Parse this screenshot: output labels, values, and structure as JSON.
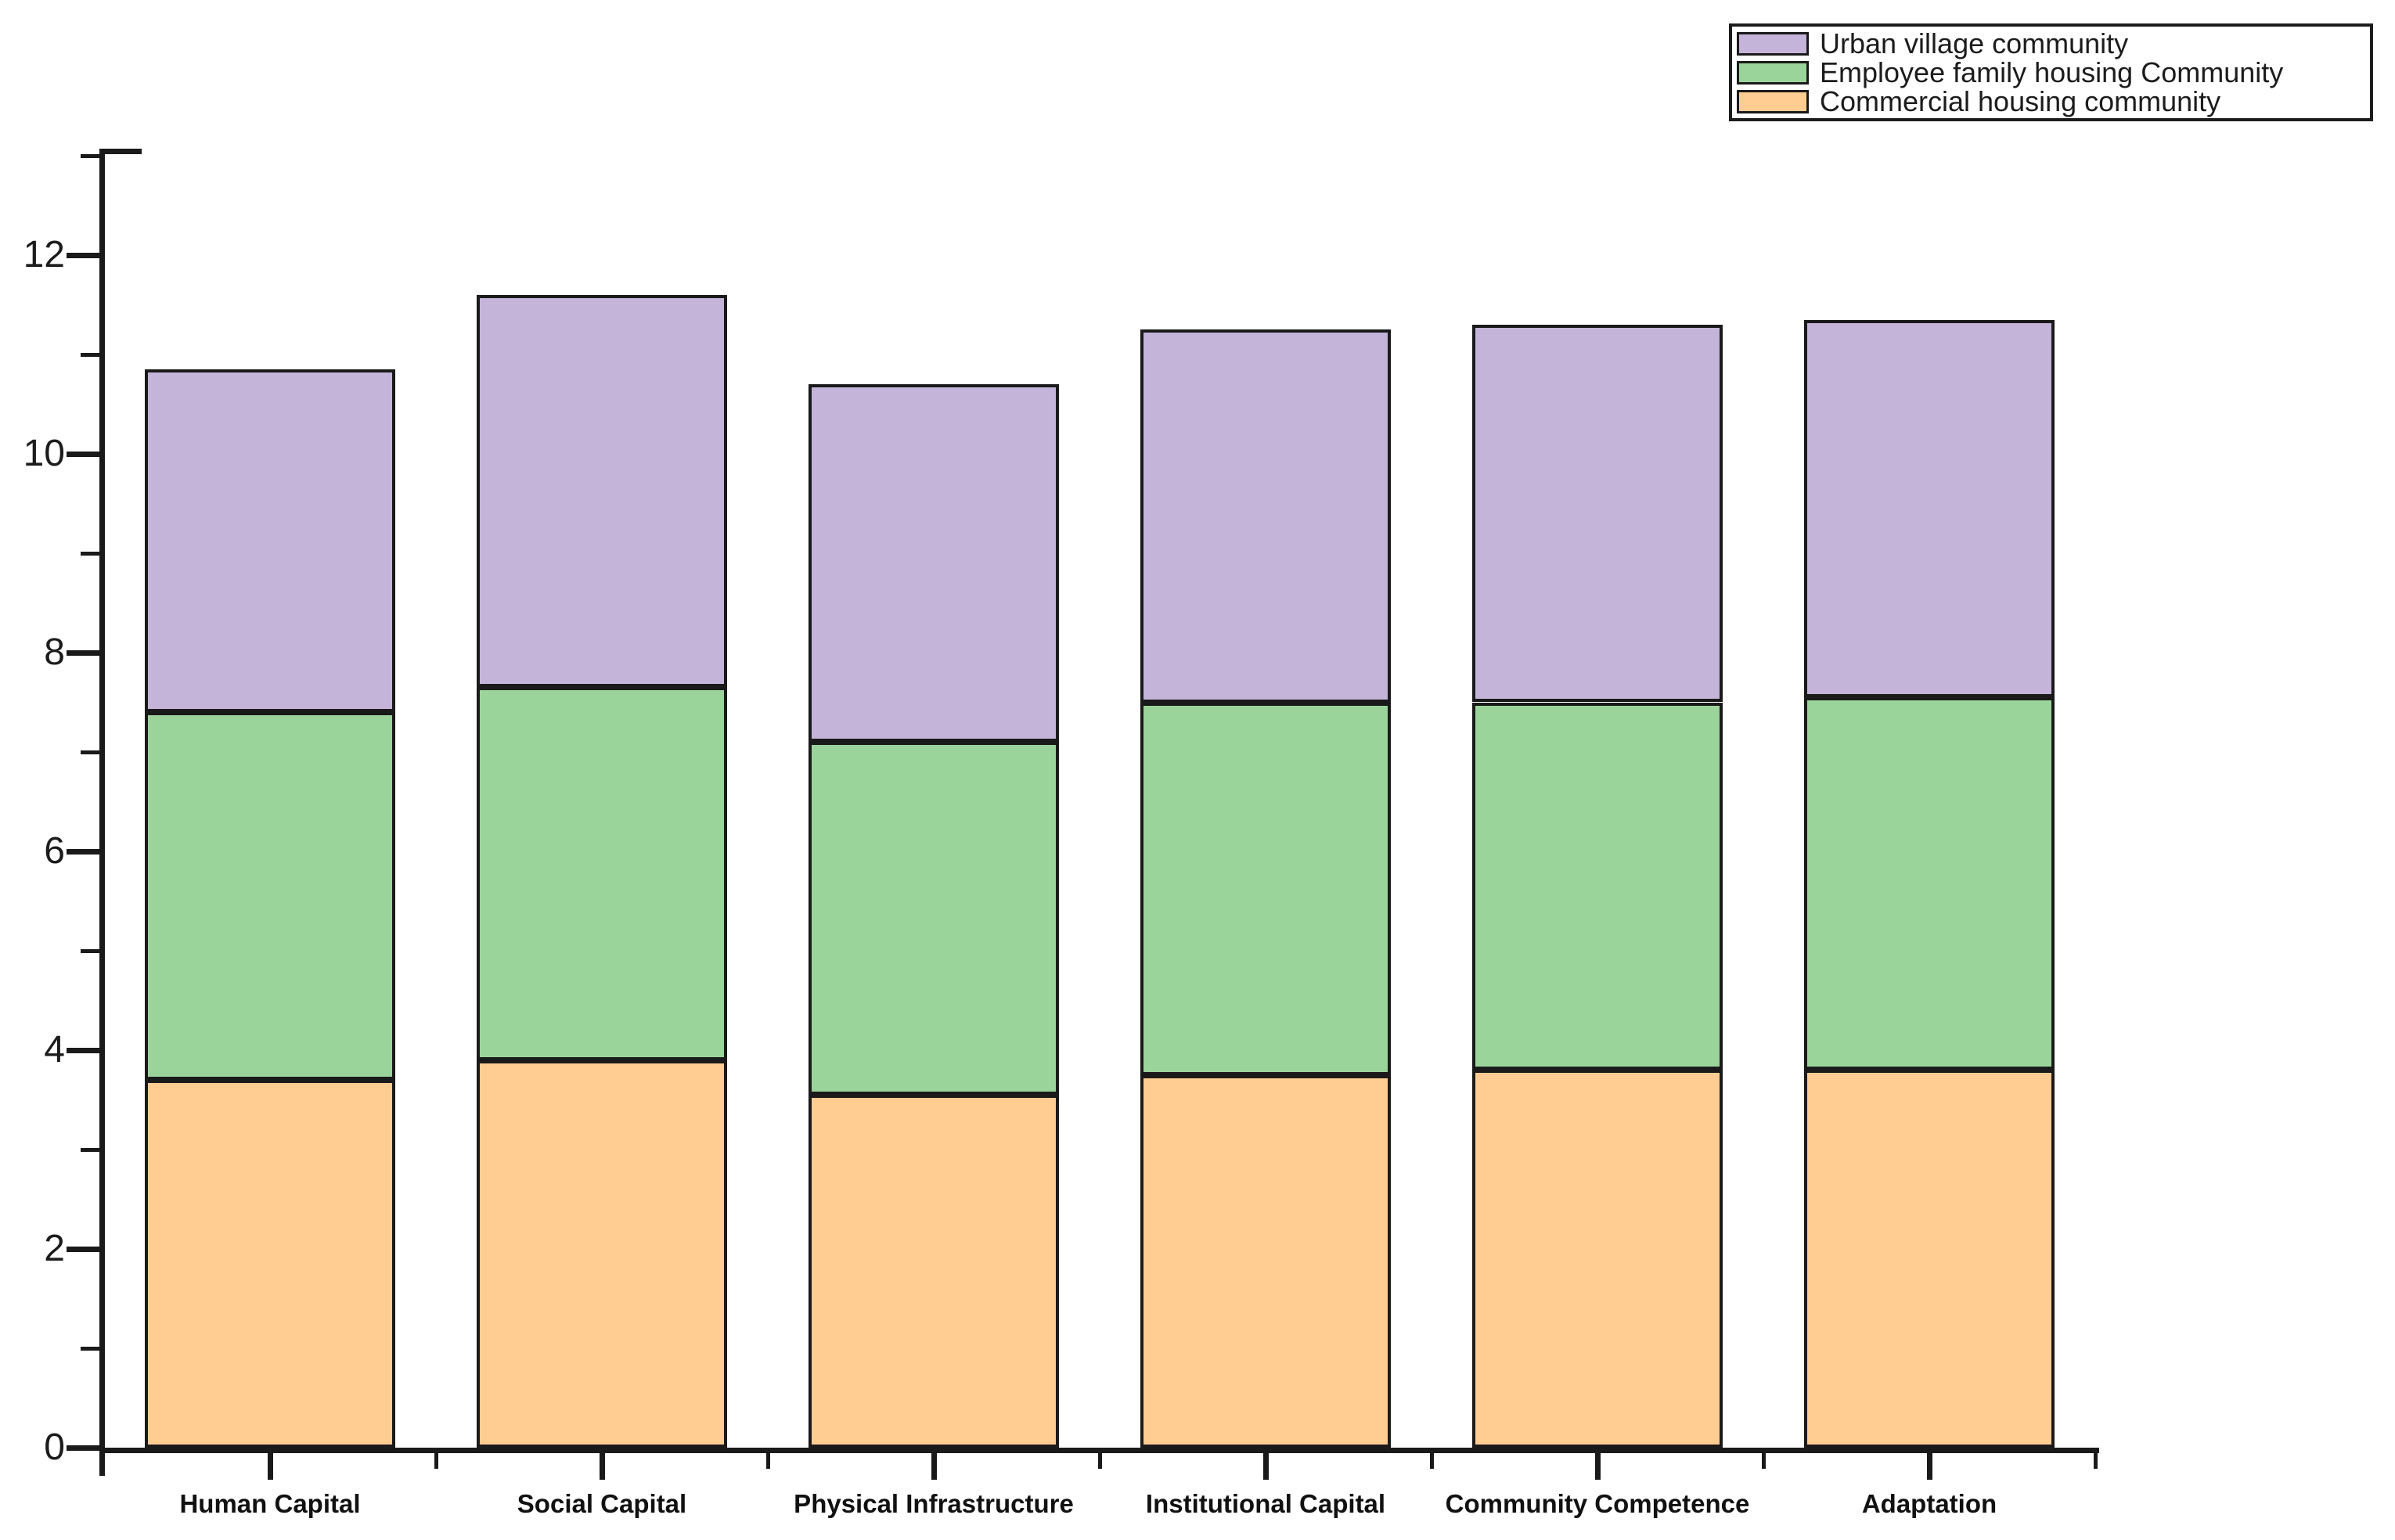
{
  "chart_data": {
    "type": "bar",
    "subtype": "stacked-column",
    "title": "",
    "xlabel": "",
    "ylabel": "",
    "categories": [
      "Human Capital",
      "Social Capital",
      "Physical Infrastructure",
      "Institutional Capital",
      "Community Competence",
      "Adaptation"
    ],
    "series": [
      {
        "name": "Commercial housing community",
        "stack_order": "bottom",
        "color": "#ffcc92",
        "values": [
          3.7,
          3.9,
          3.55,
          3.75,
          3.8,
          3.8
        ]
      },
      {
        "name": "Employee family housing Community",
        "stack_order": "middle",
        "color": "#9bd49b",
        "values": [
          3.7,
          3.75,
          3.55,
          3.75,
          3.7,
          3.75
        ]
      },
      {
        "name": "Urban village community",
        "stack_order": "top",
        "color": "#c4b4d9",
        "values": [
          3.45,
          3.95,
          3.6,
          3.75,
          3.8,
          3.8
        ]
      }
    ],
    "stack_totals": [
      10.85,
      11.6,
      10.7,
      11.25,
      11.3,
      11.35
    ],
    "y_axis": {
      "range": [
        0,
        13.05
      ],
      "major_ticks": [
        0,
        2,
        4,
        6,
        8,
        10,
        12
      ],
      "major_tick_labels": [
        "0",
        "2",
        "4",
        "6",
        "8",
        "10",
        "12"
      ],
      "minor_ticks": [
        1,
        3,
        5,
        7,
        9,
        11,
        13
      ]
    },
    "grid": false,
    "bar_outline_color": "#1a1a1a",
    "legend": {
      "position": "top-right",
      "entries": [
        {
          "label": "Urban village community",
          "color": "#c4b4d9"
        },
        {
          "label": "Employee family housing Community",
          "color": "#9bd49b"
        },
        {
          "label": "Commercial housing community",
          "color": "#ffcc92"
        }
      ]
    }
  }
}
